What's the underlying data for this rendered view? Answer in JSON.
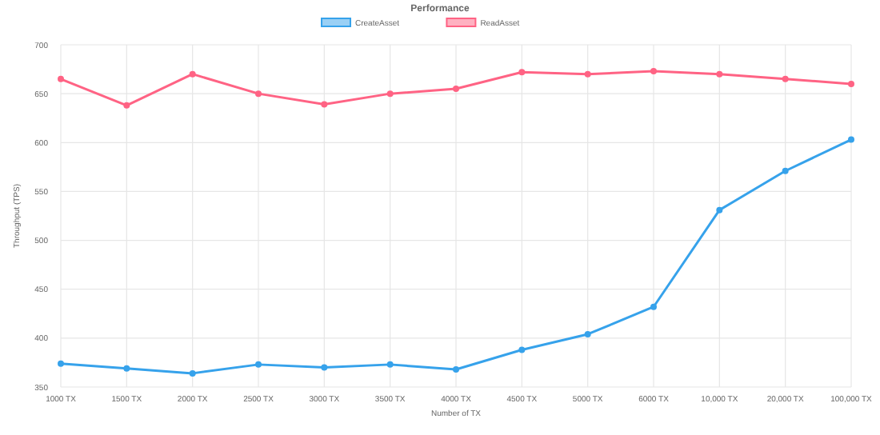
{
  "chart_data": {
    "type": "line",
    "title": "Performance",
    "xlabel": "Number of TX",
    "ylabel": "Throughput (TPS)",
    "categories": [
      "1000 TX",
      "1500 TX",
      "2000 TX",
      "2500 TX",
      "3000 TX",
      "3500 TX",
      "4000 TX",
      "4500 TX",
      "5000 TX",
      "6000 TX",
      "10,000 TX",
      "20,000 TX",
      "100,000 TX"
    ],
    "series": [
      {
        "name": "CreateAsset",
        "color": "#36a2eb",
        "values": [
          374,
          369,
          364,
          373,
          370,
          373,
          368,
          388,
          404,
          432,
          531,
          571,
          603
        ]
      },
      {
        "name": "ReadAsset",
        "color": "#ff6384",
        "values": [
          665,
          638,
          670,
          650,
          639,
          650,
          655,
          672,
          670,
          673,
          670,
          665,
          660
        ]
      }
    ],
    "ylim": [
      350,
      700
    ],
    "yticks": [
      350,
      400,
      450,
      500,
      550,
      600,
      650,
      700
    ],
    "grid": true,
    "legend": "top",
    "marker": "circle",
    "line_style": "solid"
  }
}
